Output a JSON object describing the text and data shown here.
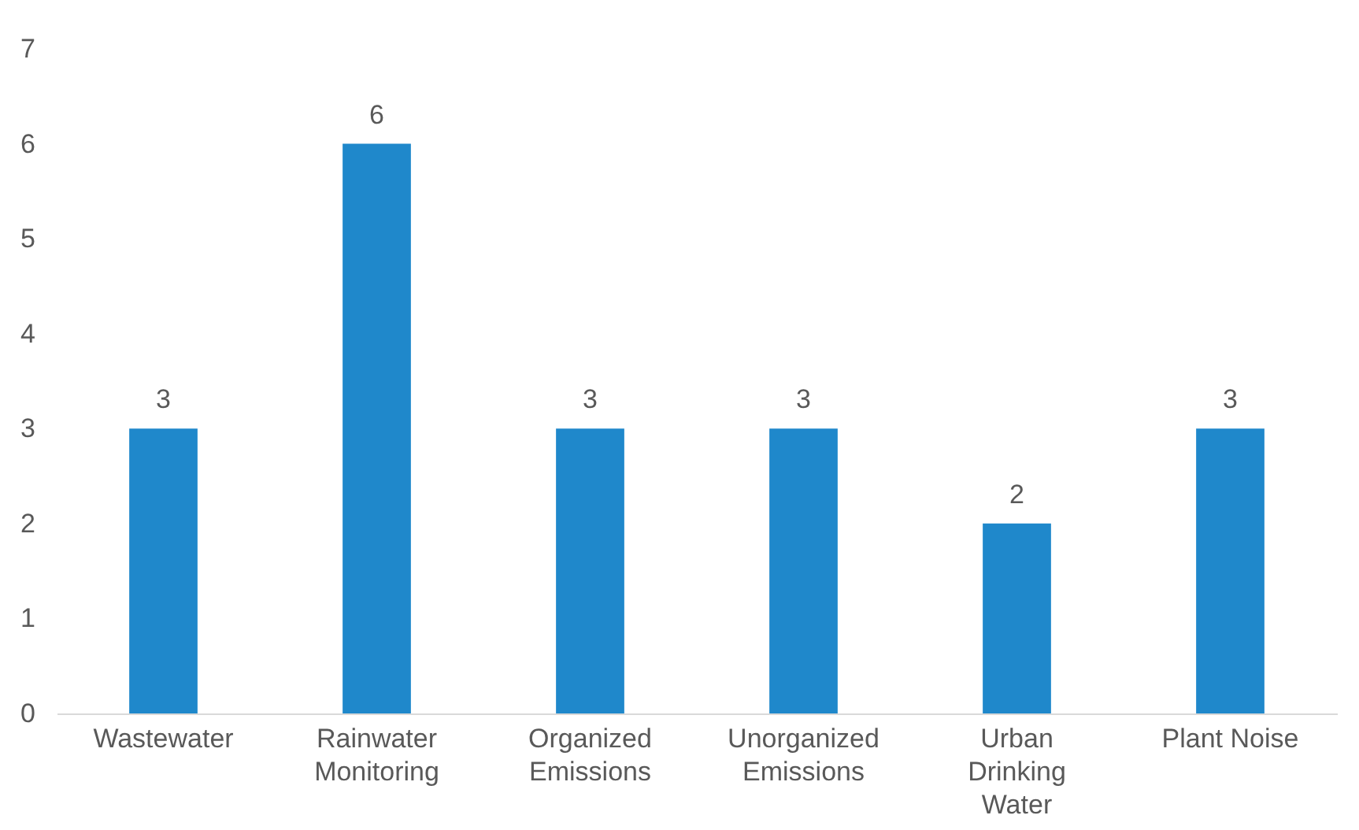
{
  "chart_data": {
    "type": "bar",
    "categories": [
      "Wastewater",
      "Rainwater Monitoring",
      "Organized Emissions",
      "Unorganized Emissions",
      "Urban Drinking Water",
      "Plant Noise"
    ],
    "values": [
      3,
      6,
      3,
      3,
      2,
      3
    ],
    "color": "#1f88cb",
    "ylim": [
      0,
      7
    ],
    "yticks": [
      0,
      1,
      2,
      3,
      4,
      5,
      6,
      7
    ],
    "grid": false,
    "data_labels": true
  }
}
